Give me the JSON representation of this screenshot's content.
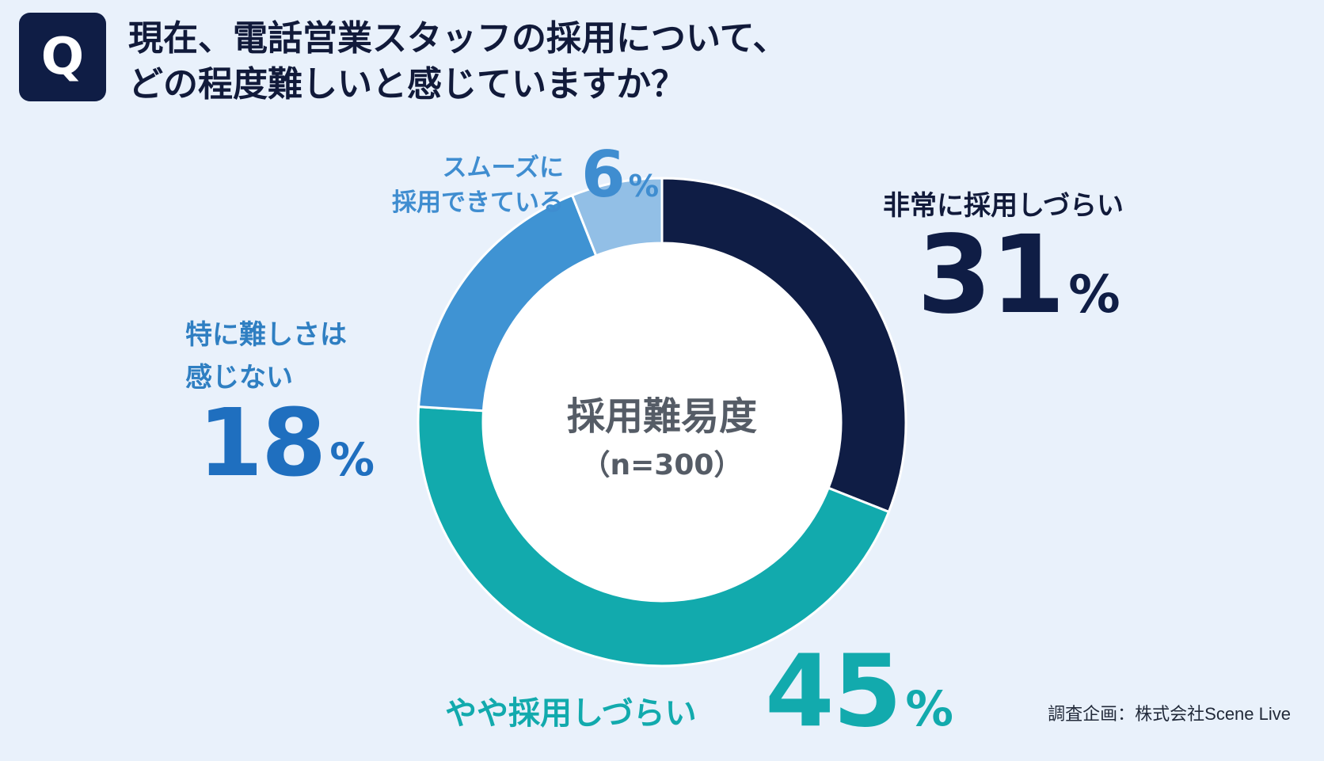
{
  "badge": "Q",
  "question": {
    "line1": "現在、電話営業スタッフの採用について、",
    "line2": "どの程度難しいと感じていますか？"
  },
  "chart_data": {
    "type": "pie",
    "title": "採用難易度",
    "subtitle": "（n=300）",
    "unit": "%",
    "slices": [
      {
        "label": "非常に採用しづらい",
        "value": 31,
        "color": "#0f1d45"
      },
      {
        "label": "やや採用しづらい",
        "value": 45,
        "color": "#12aaad"
      },
      {
        "label": "特に難しさは感じない",
        "value": 18,
        "color": "#3f93d3"
      },
      {
        "label": "スムーズに採用できている",
        "value": 6,
        "color": "#92bfe6"
      }
    ]
  },
  "labels": {
    "very_hard": {
      "name": "非常に採用しづらい",
      "value": "31"
    },
    "somewhat_hard": {
      "name": "やや採用しづらい",
      "value": "45"
    },
    "not_hard_line1": "特に難しさは",
    "not_hard_line2": "感じない",
    "not_hard_value": "18",
    "smooth_line1": "スムーズに",
    "smooth_line2": "採用できている",
    "smooth_value": "6",
    "pct": "%"
  },
  "source": "調査企画：株式会社Scene Live"
}
